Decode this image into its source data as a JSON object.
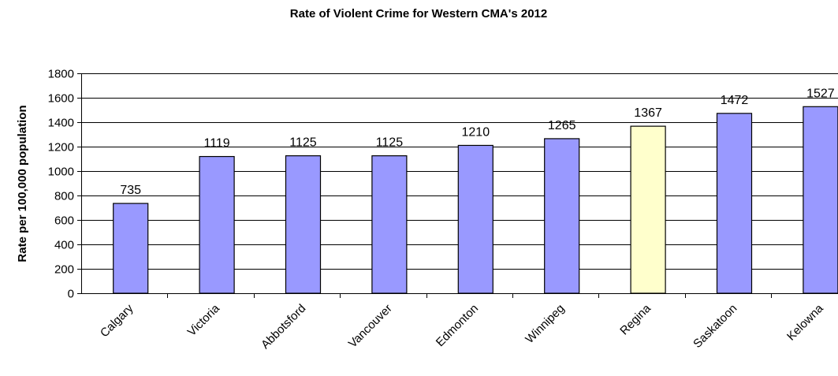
{
  "chart_data": {
    "type": "bar",
    "title": "Rate of Violent Crime for Western CMA's 2012",
    "xlabel": "",
    "ylabel": "Rate per 100,000 population",
    "categories": [
      "Calgary",
      "Victoria",
      "Abbotsford",
      "Vancouver",
      "Edmonton",
      "Winnipeg",
      "Regina",
      "Saskatoon",
      "Kelowna"
    ],
    "values": [
      735,
      1119,
      1125,
      1125,
      1210,
      1265,
      1367,
      1472,
      1527
    ],
    "value_labels": [
      "735",
      "1119",
      "1125",
      "1125",
      "1210",
      "1265",
      "1367",
      "1472",
      "1527"
    ],
    "ylim": [
      0,
      1800
    ],
    "yticks": [
      "0",
      "200",
      "400",
      "600",
      "800",
      "1000",
      "1200",
      "1400",
      "1600",
      "1800"
    ],
    "grid": true,
    "bar_color": "#9999ff",
    "highlight_color": "#ffffcc",
    "highlight_category": "Regina"
  }
}
